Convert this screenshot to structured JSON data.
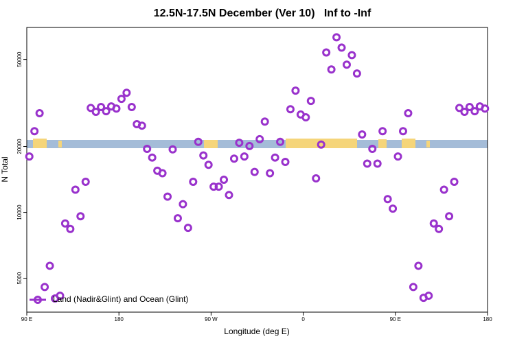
{
  "chart_data": {
    "type": "scatter",
    "title": "12.5N-17.5N December (Ver 10)   Inf to -Inf",
    "xlabel": "Longitude (deg E)",
    "ylabel": "N Total",
    "xlim": [
      90,
      540
    ],
    "xticks": [
      {
        "value": 90,
        "label": "90 E"
      },
      180,
      {
        "value": 270,
        "label": "90 W"
      },
      {
        "value": 360,
        "label": "0"
      },
      {
        "value": 450,
        "label": "90 E"
      },
      {
        "value": 540,
        "label": "180"
      }
    ],
    "ylim": [
      3500,
      70000
    ],
    "ylog": true,
    "yticks": [
      5000,
      10000,
      20000,
      50000
    ],
    "legend": "lower left",
    "series": [
      {
        "name": "Land (Nadir&Glint) and Ocean (Glint)",
        "color": "#9932cc",
        "x": [
          92.5,
          97.5,
          102.5,
          107.5,
          112.5,
          117.5,
          122.5,
          127.5,
          132.5,
          137.5,
          142.5,
          147.5,
          152.5,
          157.5,
          162.5,
          167.5,
          172.5,
          177.5,
          182.5,
          187.5,
          192.5,
          197.5,
          202.5,
          207.5,
          212.5,
          217.5,
          222.5,
          227.5,
          232.5,
          237.5,
          242.5,
          247.5,
          252.5,
          257.5,
          262.5,
          267.5,
          272.5,
          277.5,
          282.5,
          287.5,
          292.5,
          297.5,
          302.5,
          307.5,
          312.5,
          317.5,
          322.5,
          327.5,
          332.5,
          337.5,
          342.5,
          347.5,
          352.5,
          357.5,
          362.5,
          367.5,
          372.5,
          377.5,
          382.5,
          387.5,
          392.5,
          397.5,
          402.5,
          407.5,
          412.5,
          417.5,
          422.5,
          427.5,
          432.5,
          437.5,
          442.5,
          447.5,
          452.5,
          457.5,
          462.5,
          467.5,
          472.5,
          477.5,
          482.5,
          487.5,
          492.5,
          497.5,
          502.5,
          507.5,
          512.5,
          517.5,
          522.5,
          527.5,
          532.5,
          537.5
        ],
        "values": [
          18000,
          23500,
          28400,
          4560,
          5700,
          4040,
          4160,
          8900,
          8400,
          12700,
          9600,
          13800,
          30000,
          28800,
          30300,
          29000,
          30500,
          29800,
          33000,
          35200,
          30300,
          25300,
          24900,
          19500,
          17800,
          15500,
          15100,
          11800,
          19400,
          9400,
          10900,
          8500,
          13800,
          21000,
          18200,
          16500,
          13100,
          13100,
          14100,
          12000,
          17600,
          20800,
          18000,
          20100,
          15300,
          21600,
          26000,
          15100,
          17800,
          21000,
          17000,
          29600,
          36000,
          28000,
          27200,
          32300,
          14300,
          20400,
          53800,
          45000,
          63100,
          56600,
          47300,
          52300,
          43100,
          22700,
          16700,
          19500,
          16700,
          23500,
          11500,
          10400,
          18000,
          23500,
          28400,
          4560,
          5700,
          4070,
          4160,
          8900,
          8400,
          12700,
          9600,
          13800,
          30000,
          28800,
          30300,
          29000,
          30500,
          29800
        ]
      }
    ]
  }
}
